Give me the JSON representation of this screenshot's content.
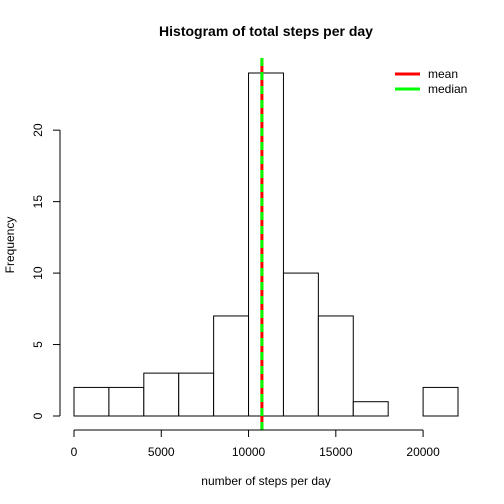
{
  "chart_data": {
    "type": "bar",
    "subtype": "histogram",
    "title": "Histogram of total steps per day",
    "xlabel": "number of steps per day",
    "ylabel": "Frequency",
    "bin_edges": [
      0,
      2000,
      4000,
      6000,
      8000,
      10000,
      12000,
      14000,
      16000,
      18000,
      20000,
      22000
    ],
    "counts": [
      2,
      2,
      3,
      3,
      7,
      24,
      10,
      7,
      1,
      0,
      2
    ],
    "xlim": [
      0,
      22000
    ],
    "ylim": [
      0,
      24
    ],
    "x_ticks": [
      0,
      5000,
      10000,
      15000,
      20000
    ],
    "x_tick_labels": [
      "0",
      "5000",
      "10000",
      "15000",
      "20000"
    ],
    "y_ticks": [
      0,
      5,
      10,
      15,
      20
    ],
    "y_tick_labels": [
      "0",
      "5",
      "10",
      "15",
      "20"
    ],
    "grid": false,
    "legend_position": "top-right",
    "reference_lines": [
      {
        "name": "mean",
        "value": 10766,
        "color": "#ff0000"
      },
      {
        "name": "median",
        "value": 10765,
        "color": "#00ff00"
      }
    ],
    "bar_fill": "#ffffff",
    "bar_stroke": "#000000"
  }
}
